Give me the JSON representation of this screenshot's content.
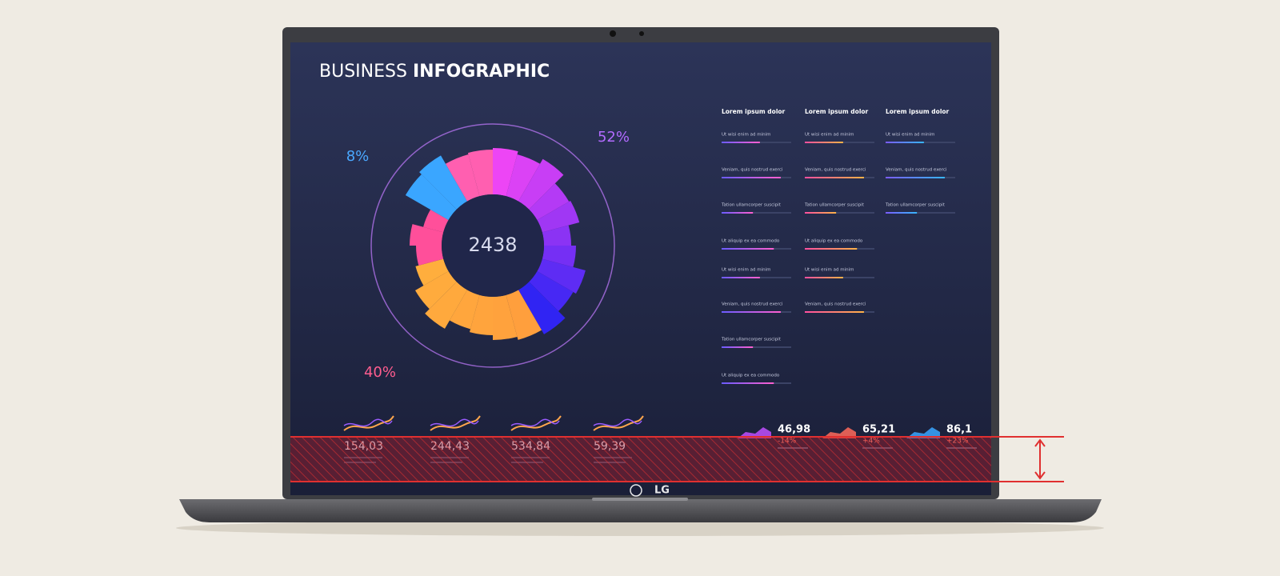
{
  "header": {
    "title_light": "BUSINESS",
    "title_bold": "INFOGRAPHIC"
  },
  "donut": {
    "center": "2438",
    "labels": [
      "8%",
      "52%",
      "40%"
    ]
  },
  "columns": [
    {
      "heading": "Lorem ipsum dolor",
      "items": [
        "Ut wisi enim ad minim",
        "Veniam, quis nostrud exerci",
        "Tation ullamcorper suscipit",
        "Ut aliquip ex ea commodo",
        "Ut wisi enim ad minim",
        "Veniam, quis nostrud exerci",
        "Tation ullamcorper suscipit",
        "Ut aliquip ex ea commodo"
      ]
    },
    {
      "heading": "Lorem ipsum dolor",
      "items": [
        "Ut wisi enim ad minim",
        "Veniam, quis nostrud exerci",
        "Tation ullamcorper suscipit",
        "Ut aliquip ex ea commodo",
        "Ut wisi enim ad minim",
        "Veniam, quis nostrud exerci"
      ]
    },
    {
      "heading": "Lorem ipsum dolor",
      "items": [
        "Ut wisi enim ad minim",
        "Veniam, quis nostrud exerci",
        "Tation ullamcorper suscipit"
      ]
    }
  ],
  "stats": [
    "154,03",
    "244,43",
    "534,84",
    "59,39"
  ],
  "kpis": [
    {
      "value": "46,98",
      "change": "-14%"
    },
    {
      "value": "65,21",
      "change": "+4%"
    },
    {
      "value": "86,1",
      "change": "+23%"
    }
  ],
  "brand": "LG"
}
